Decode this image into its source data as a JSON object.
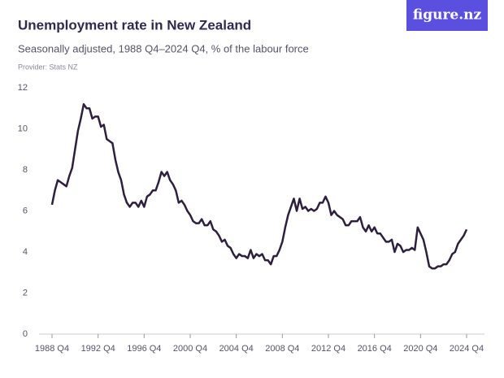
{
  "chart_data": {
    "type": "line",
    "title": "Unemployment rate in New Zealand",
    "subtitle": "Seasonally adjusted, 1988 Q4–2024 Q4, % of the labour force",
    "source": "Provider: Stats NZ",
    "logo": "figure.nz",
    "color": "#2e1f3f",
    "grid": false,
    "ylim": [
      0,
      12
    ],
    "yticks": [
      0,
      2,
      4,
      6,
      8,
      10,
      12
    ],
    "categories": [
      "1988 Q4",
      null,
      null,
      null,
      null,
      null,
      null,
      null,
      null,
      null,
      null,
      null,
      null,
      null,
      null,
      null,
      "1992 Q4",
      null,
      null,
      null,
      null,
      null,
      null,
      null,
      null,
      null,
      null,
      null,
      null,
      null,
      null,
      null,
      "1996 Q4",
      null,
      null,
      null,
      null,
      null,
      null,
      null,
      null,
      null,
      null,
      null,
      null,
      null,
      null,
      null,
      "2000 Q4",
      null,
      null,
      null,
      null,
      null,
      null,
      null,
      null,
      null,
      null,
      null,
      null,
      null,
      null,
      null,
      "2004 Q4",
      null,
      null,
      null,
      null,
      null,
      null,
      null,
      null,
      null,
      null,
      null,
      null,
      null,
      null,
      null,
      "2008 Q4",
      null,
      null,
      null,
      null,
      null,
      null,
      null,
      null,
      null,
      null,
      null,
      null,
      null,
      null,
      null,
      "2012 Q4",
      null,
      null,
      null,
      null,
      null,
      null,
      null,
      null,
      null,
      null,
      null,
      null,
      null,
      null,
      null,
      "2016 Q4",
      null,
      null,
      null,
      null,
      null,
      null,
      null,
      null,
      null,
      null,
      null,
      null,
      null,
      null,
      null,
      "2020 Q4",
      null,
      null,
      null,
      null,
      null,
      null,
      null,
      null,
      null,
      null,
      null,
      null,
      null,
      null,
      null,
      "2024 Q4"
    ],
    "values": [
      6.3,
      7.0,
      7.5,
      7.4,
      7.3,
      7.2,
      7.7,
      8.1,
      9.0,
      9.9,
      10.5,
      11.2,
      11.0,
      11.0,
      10.5,
      10.6,
      10.6,
      10.1,
      10.2,
      9.5,
      9.4,
      9.3,
      8.5,
      7.9,
      7.5,
      6.8,
      6.4,
      6.2,
      6.4,
      6.4,
      6.2,
      6.5,
      6.2,
      6.7,
      6.8,
      7.0,
      7.0,
      7.4,
      7.9,
      7.7,
      7.9,
      7.5,
      7.3,
      7.0,
      6.4,
      6.5,
      6.3,
      6.0,
      5.8,
      5.5,
      5.4,
      5.4,
      5.6,
      5.3,
      5.3,
      5.5,
      5.1,
      5.0,
      4.8,
      4.5,
      4.6,
      4.3,
      4.2,
      3.9,
      3.7,
      3.9,
      3.8,
      3.8,
      3.7,
      4.1,
      3.7,
      3.9,
      3.8,
      3.9,
      3.6,
      3.6,
      3.4,
      3.8,
      3.8,
      4.1,
      4.5,
      5.2,
      5.8,
      6.2,
      6.6,
      6.0,
      6.6,
      6.1,
      6.2,
      6.0,
      6.1,
      6.0,
      6.1,
      6.4,
      6.4,
      6.7,
      6.4,
      5.8,
      6.0,
      5.8,
      5.7,
      5.6,
      5.3,
      5.3,
      5.5,
      5.5,
      5.5,
      5.7,
      5.2,
      5.0,
      5.3,
      5.0,
      5.2,
      4.9,
      4.9,
      4.7,
      4.5,
      4.5,
      4.6,
      4.0,
      4.4,
      4.3,
      4.0,
      4.1,
      4.1,
      4.2,
      4.1,
      5.2,
      4.9,
      4.6,
      4.0,
      3.3,
      3.2,
      3.2,
      3.3,
      3.3,
      3.4,
      3.4,
      3.6,
      3.9,
      4.0,
      4.4,
      4.6,
      4.8,
      5.1
    ]
  }
}
